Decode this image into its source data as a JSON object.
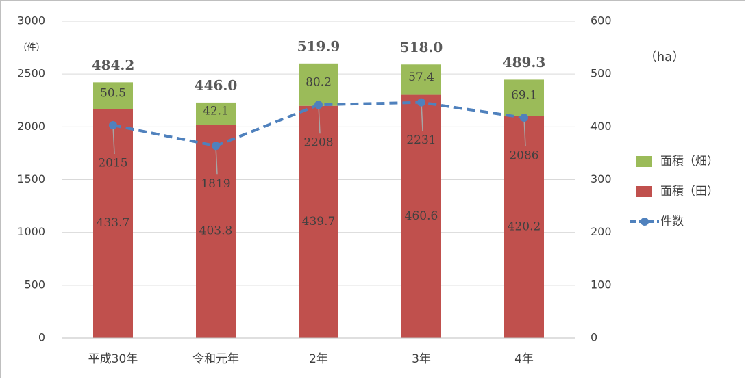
{
  "chart_data": {
    "type": "bar-line",
    "categories": [
      "平成30年",
      "令和元年",
      "2年",
      "3年",
      "4年"
    ],
    "series": [
      {
        "name": "面積（田）",
        "type": "bar",
        "axis": "y2",
        "color": "#c0504d",
        "values": [
          433.7,
          403.8,
          439.7,
          460.6,
          420.2
        ]
      },
      {
        "name": "面積（畑）",
        "type": "bar",
        "axis": "y2",
        "color": "#9bbb59",
        "values": [
          50.5,
          42.1,
          80.2,
          57.4,
          69.1
        ]
      },
      {
        "name": "件数",
        "type": "line",
        "axis": "y",
        "color": "#4f81bd",
        "values": [
          2015,
          1819,
          2208,
          2231,
          2086
        ]
      }
    ],
    "totals": [
      484.2,
      446.0,
      519.9,
      518.0,
      489.3
    ],
    "total_labels": [
      "484.2",
      "446.0",
      "519.9",
      "518.0",
      "489.3"
    ],
    "y_unit": "（件）",
    "y2_unit": "（ha）",
    "ylim": [
      0,
      3000
    ],
    "yticks": [
      0,
      500,
      1000,
      1500,
      2000,
      2500,
      3000
    ],
    "y2lim": [
      0,
      600
    ],
    "y2ticks": [
      0,
      100,
      200,
      300,
      400,
      500,
      600
    ],
    "grid": true,
    "legend": "right"
  }
}
